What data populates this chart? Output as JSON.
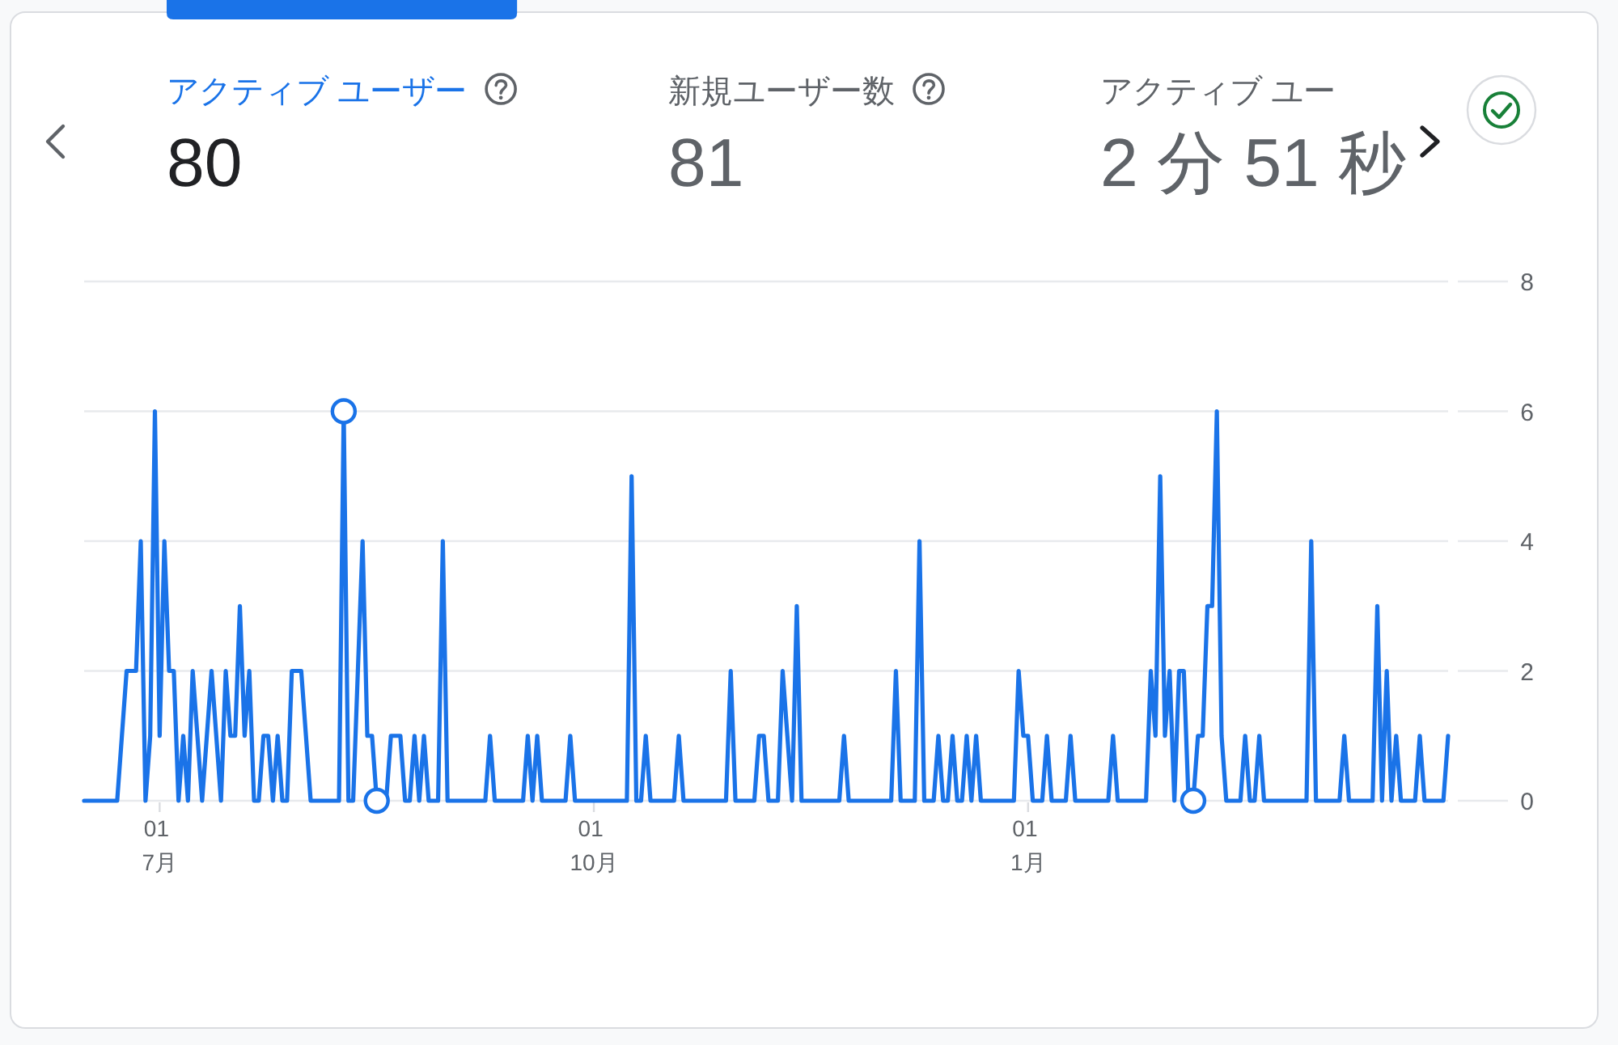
{
  "chart_data": [
    {
      "type": "other",
      "categories": [
        "アクティブ ユーザー",
        "新規ユーザー数",
        "アクティブ ユー"
      ],
      "value_labels": [
        "80",
        "81",
        "2 分 51 秒"
      ]
    },
    {
      "type": "line",
      "grid": "y",
      "ylim": [
        0,
        8
      ],
      "yticks": [
        0,
        2,
        4,
        6,
        8
      ],
      "categories": [
        null,
        null,
        null,
        null,
        null,
        null,
        null,
        null,
        null,
        null,
        null,
        null,
        null,
        null,
        null,
        null,
        "01\n7月",
        null,
        null,
        null,
        null,
        null,
        null,
        null,
        null,
        null,
        null,
        null,
        null,
        null,
        null,
        null,
        null,
        null,
        null,
        null,
        null,
        null,
        null,
        null,
        null,
        null,
        null,
        null,
        null,
        null,
        null,
        null,
        null,
        null,
        null,
        null,
        null,
        null,
        null,
        null,
        null,
        null,
        null,
        null,
        null,
        null,
        null,
        null,
        null,
        null,
        null,
        null,
        null,
        null,
        null,
        null,
        null,
        null,
        null,
        null,
        null,
        null,
        null,
        null,
        null,
        null,
        null,
        null,
        null,
        null,
        null,
        null,
        null,
        null,
        null,
        null,
        null,
        null,
        null,
        null,
        null,
        null,
        null,
        null,
        null,
        null,
        null,
        null,
        null,
        null,
        null,
        null,
        "01\n10月",
        null,
        null,
        null,
        null,
        null,
        null,
        null,
        null,
        null,
        null,
        null,
        null,
        null,
        null,
        null,
        null,
        null,
        null,
        null,
        null,
        null,
        null,
        null,
        null,
        null,
        null,
        null,
        null,
        null,
        null,
        null,
        null,
        null,
        null,
        null,
        null,
        null,
        null,
        null,
        null,
        null,
        null,
        null,
        null,
        null,
        null,
        null,
        null,
        null,
        null,
        null,
        null,
        null,
        null,
        null,
        null,
        null,
        null,
        null,
        null,
        null,
        null,
        null,
        null,
        null,
        null,
        null,
        null,
        null,
        null,
        null,
        null,
        null,
        null,
        null,
        null,
        null,
        null,
        null,
        null,
        null,
        null,
        null,
        null,
        null,
        null,
        null,
        null,
        null,
        null,
        null,
        "01\n1月",
        null,
        null,
        null,
        null,
        null,
        null,
        null,
        null,
        null,
        null,
        null,
        null,
        null,
        null,
        null,
        null,
        null,
        null,
        null,
        null,
        null,
        null,
        null,
        null,
        null,
        null,
        null,
        null,
        null,
        null,
        null,
        null,
        null,
        null,
        null,
        null,
        null,
        null,
        null,
        null,
        null,
        null,
        null,
        null,
        null,
        null,
        null,
        null,
        null,
        null,
        null,
        null,
        null,
        null,
        null,
        null,
        null,
        null,
        null,
        null,
        null,
        null,
        null,
        null,
        null,
        null,
        null,
        null,
        null,
        null,
        null,
        null,
        null,
        null,
        null,
        null,
        null,
        null,
        null,
        null,
        null,
        null,
        null,
        null,
        null,
        null,
        null,
        null,
        null
      ],
      "series": [
        {
          "type": "line",
          "color": "#1a73e8",
          "values": [
            0,
            0,
            0,
            0,
            0,
            0,
            0,
            0,
            1,
            2,
            2,
            2,
            4,
            0,
            1,
            6,
            1,
            4,
            2,
            2,
            0,
            1,
            0,
            2,
            1,
            0,
            1,
            2,
            1,
            0,
            2,
            1,
            1,
            3,
            1,
            2,
            0,
            0,
            1,
            1,
            0,
            1,
            0,
            0,
            2,
            2,
            2,
            1,
            0,
            0,
            0,
            0,
            0,
            0,
            0,
            6,
            0,
            0,
            2,
            4,
            1,
            1,
            0,
            0,
            0,
            1,
            1,
            1,
            0,
            0,
            1,
            0,
            1,
            0,
            0,
            0,
            4,
            0,
            0,
            0,
            0,
            0,
            0,
            0,
            0,
            0,
            1,
            0,
            0,
            0,
            0,
            0,
            0,
            0,
            1,
            0,
            1,
            0,
            0,
            0,
            0,
            0,
            0,
            1,
            0,
            0,
            0,
            0,
            0,
            0,
            0,
            0,
            0,
            0,
            0,
            0,
            5,
            0,
            0,
            1,
            0,
            0,
            0,
            0,
            0,
            0,
            1,
            0,
            0,
            0,
            0,
            0,
            0,
            0,
            0,
            0,
            0,
            2,
            0,
            0,
            0,
            0,
            0,
            1,
            1,
            0,
            0,
            0,
            2,
            1,
            0,
            3,
            0,
            0,
            0,
            0,
            0,
            0,
            0,
            0,
            0,
            1,
            0,
            0,
            0,
            0,
            0,
            0,
            0,
            0,
            0,
            0,
            2,
            0,
            0,
            0,
            0,
            4,
            0,
            0,
            0,
            1,
            0,
            0,
            1,
            0,
            0,
            1,
            0,
            1,
            0,
            0,
            0,
            0,
            0,
            0,
            0,
            0,
            2,
            1,
            1,
            0,
            0,
            0,
            1,
            0,
            0,
            0,
            0,
            1,
            0,
            0,
            0,
            0,
            0,
            0,
            0,
            0,
            1,
            0,
            0,
            0,
            0,
            0,
            0,
            0,
            2,
            1,
            5,
            1,
            2,
            0,
            2,
            2,
            0,
            0,
            1,
            1,
            3,
            3,
            6,
            1,
            0,
            0,
            0,
            0,
            1,
            0,
            0,
            1,
            0,
            0,
            0,
            0,
            0,
            0,
            0,
            0,
            0,
            0,
            4,
            0,
            0,
            0,
            0,
            0,
            0,
            1,
            0,
            0,
            0,
            0,
            0,
            0,
            3,
            0,
            2,
            0,
            1,
            0,
            0,
            0,
            0,
            1,
            0,
            0,
            0,
            0,
            0,
            1
          ]
        },
        {
          "type": "scatter",
          "marker": "circle",
          "color": "#1a73e8",
          "values": [
            null,
            null,
            null,
            null,
            null,
            null,
            null,
            null,
            null,
            null,
            null,
            null,
            null,
            null,
            null,
            null,
            null,
            null,
            null,
            null,
            null,
            null,
            null,
            null,
            null,
            null,
            null,
            null,
            null,
            null,
            null,
            null,
            null,
            null,
            null,
            null,
            null,
            null,
            null,
            null,
            null,
            null,
            null,
            null,
            null,
            null,
            null,
            null,
            null,
            null,
            null,
            null,
            null,
            null,
            null,
            6,
            null,
            null,
            null,
            null,
            null,
            null,
            0,
            null,
            null,
            null,
            null,
            null,
            null,
            null,
            null,
            null,
            null,
            null,
            null,
            null,
            null,
            null,
            null,
            null,
            null,
            null,
            null,
            null,
            null,
            null,
            null,
            null,
            null,
            null,
            null,
            null,
            null,
            null,
            null,
            null,
            null,
            null,
            null,
            null,
            null,
            null,
            null,
            null,
            null,
            null,
            null,
            null,
            null,
            null,
            null,
            null,
            null,
            null,
            null,
            null,
            null,
            null,
            null,
            null,
            null,
            null,
            null,
            null,
            null,
            null,
            null,
            null,
            null,
            null,
            null,
            null,
            null,
            null,
            null,
            null,
            null,
            null,
            null,
            null,
            null,
            null,
            null,
            null,
            null,
            null,
            null,
            null,
            null,
            null,
            null,
            null,
            null,
            null,
            null,
            null,
            null,
            null,
            null,
            null,
            null,
            null,
            null,
            null,
            null,
            null,
            null,
            null,
            null,
            null,
            null,
            null,
            null,
            null,
            null,
            null,
            null,
            null,
            null,
            null,
            null,
            null,
            null,
            null,
            null,
            null,
            null,
            null,
            null,
            null,
            null,
            null,
            null,
            null,
            null,
            null,
            null,
            null,
            null,
            null,
            null,
            null,
            null,
            null,
            null,
            null,
            null,
            null,
            null,
            null,
            null,
            null,
            null,
            null,
            null,
            null,
            null,
            null,
            null,
            null,
            null,
            null,
            null,
            null,
            null,
            null,
            null,
            null,
            null,
            null,
            null,
            null,
            null,
            null,
            null,
            0,
            null,
            null,
            null,
            null,
            null,
            null,
            null,
            null,
            null,
            null,
            null,
            null,
            null,
            null,
            null,
            null,
            null,
            null,
            null,
            null,
            null,
            null,
            null,
            null,
            null,
            null,
            null,
            null,
            null,
            null,
            null,
            null,
            null,
            null,
            null,
            null,
            null,
            null,
            null,
            null,
            null,
            null,
            null,
            null,
            null,
            null,
            null,
            null,
            null,
            null,
            null,
            null,
            null,
            null
          ]
        }
      ]
    }
  ]
}
